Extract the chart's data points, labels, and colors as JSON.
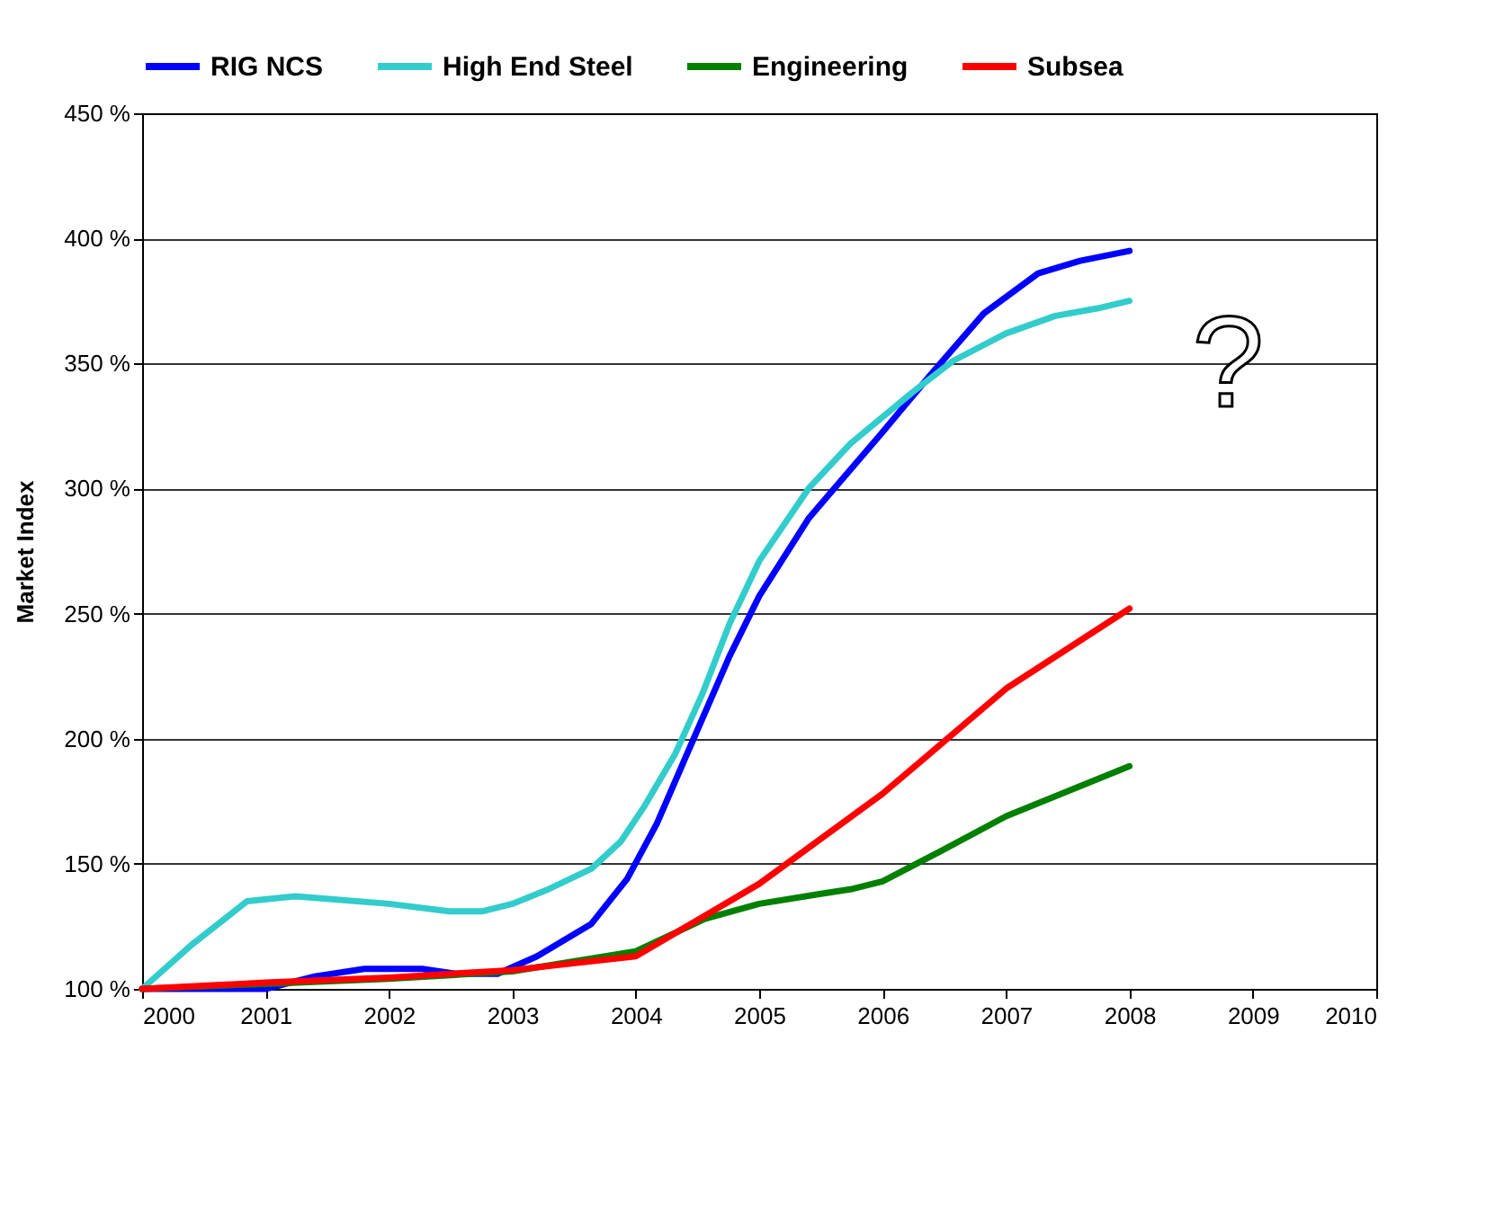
{
  "chart_data": {
    "type": "line",
    "ylabel": "Market Index",
    "xlim": [
      2000,
      2010
    ],
    "xticks": [
      2000,
      2001,
      2002,
      2003,
      2004,
      2005,
      2006,
      2007,
      2008,
      2009,
      2010
    ],
    "ylim": [
      100,
      450
    ],
    "yticks": [
      {
        "value": 100,
        "label": "100 %"
      },
      {
        "value": 150,
        "label": "150 %"
      },
      {
        "value": 200,
        "label": "200 %"
      },
      {
        "value": 250,
        "label": "250 %"
      },
      {
        "value": 300,
        "label": "300 %"
      },
      {
        "value": 350,
        "label": "350 %"
      },
      {
        "value": 400,
        "label": "400 %"
      },
      {
        "value": 450,
        "label": "450 %"
      }
    ],
    "grid": "y",
    "legend": "top",
    "line_style": "solid",
    "marker": "none",
    "annotations": [
      "?"
    ],
    "series": [
      {
        "name": "RIG NCS",
        "color": "#0000ff",
        "x": [
          2000,
          2001,
          2001.4,
          2001.8,
          2002.27,
          2002.54,
          2002.88,
          2003.2,
          2003.64,
          2003.93,
          2004.17,
          2004.46,
          2004.76,
          2005,
          2005.4,
          2005.99,
          2006.38,
          2006.82,
          2007.26,
          2007.6,
          2008
        ],
        "values": [
          100,
          100,
          105,
          108,
          108,
          106,
          106,
          113,
          126,
          144,
          166,
          199,
          233,
          257,
          288,
          322,
          345,
          370,
          386,
          391,
          395
        ]
      },
      {
        "name": "High End Steel",
        "color": "#33cccc",
        "x": [
          2000,
          2000.41,
          2000.85,
          2001.24,
          2001.49,
          2002,
          2002.49,
          2002.76,
          2003,
          2003.3,
          2003.64,
          2003.88,
          2004.07,
          2004.32,
          2004.54,
          2004.76,
          2005,
          2005.4,
          2005.74,
          2006.23,
          2006.57,
          2007,
          2007.4,
          2007.74,
          2008
        ],
        "values": [
          100,
          118,
          135,
          137,
          136,
          134,
          131,
          131,
          134,
          140,
          148,
          159,
          173,
          194,
          218,
          246,
          271,
          300,
          318,
          338,
          351,
          362,
          369,
          372,
          375
        ]
      },
      {
        "name": "Engineering",
        "color": "#008000",
        "x": [
          2000,
          2001,
          2002,
          2003,
          2004,
          2004.56,
          2005,
          2005.5,
          2005.76,
          2006,
          2006.47,
          2007,
          2008
        ],
        "values": [
          100,
          102,
          104,
          107,
          115,
          128,
          134,
          138,
          140,
          143,
          155,
          169,
          189
        ]
      },
      {
        "name": "Subsea",
        "color": "#ff0000",
        "x": [
          2000,
          2001,
          2002,
          2003,
          2004,
          2005,
          2006,
          2007,
          2008
        ],
        "values": [
          100,
          102.5,
          104.5,
          107.5,
          113,
          142,
          178,
          220,
          252
        ]
      }
    ]
  }
}
